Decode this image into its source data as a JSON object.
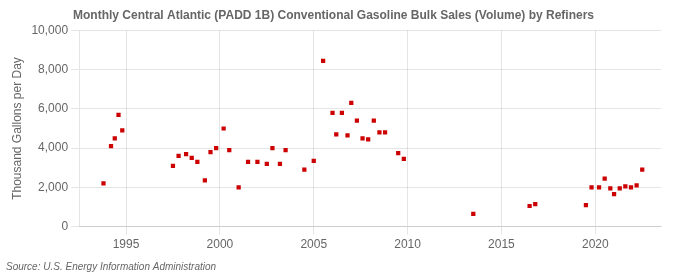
{
  "chart_data": {
    "type": "scatter",
    "title": "Monthly Central Atlantic (PADD 1B) Conventional Gasoline Bulk Sales (Volume) by Refiners",
    "ylabel": "Thousand Gallons per Day",
    "annotation": "Source: U.S. Energy Information Administration",
    "color": "#cc0000",
    "marker": "square",
    "grid": true,
    "xlim": [
      1992.5,
      2023.5
    ],
    "ylim": [
      0,
      10000
    ],
    "xticks": [
      1995,
      2000,
      2005,
      2010,
      2015,
      2020
    ],
    "yticks": [
      0,
      {
        "value": 2000,
        "label": "2,000"
      },
      {
        "value": 4000,
        "label": "4,000"
      },
      {
        "value": 6000,
        "label": "6,000"
      },
      {
        "value": 8000,
        "label": "8,000"
      },
      {
        "value": 10000,
        "label": "10,000"
      }
    ],
    "x": [
      1993.8,
      1994.2,
      1994.4,
      1994.6,
      1994.8,
      1997.5,
      1997.8,
      1998.2,
      1998.5,
      1998.8,
      1999.2,
      1999.5,
      1999.8,
      2000.2,
      2000.5,
      2001.0,
      2001.5,
      2002.0,
      2002.5,
      2002.8,
      2003.2,
      2003.5,
      2004.5,
      2005.0,
      2005.5,
      2006.0,
      2006.2,
      2006.5,
      2006.8,
      2007.0,
      2007.3,
      2007.6,
      2007.9,
      2008.2,
      2008.5,
      2008.8,
      2009.5,
      2009.8,
      2013.5,
      2016.5,
      2016.8,
      2019.5,
      2019.8,
      2020.2,
      2020.5,
      2020.8,
      2021.0,
      2021.3,
      2021.6,
      2021.9,
      2022.2,
      2022.5
    ],
    "values": [
      2200,
      4100,
      4500,
      5700,
      4900,
      3100,
      3600,
      3700,
      3500,
      3300,
      2350,
      3800,
      4000,
      5000,
      3900,
      2000,
      3300,
      3300,
      3200,
      4000,
      3200,
      3900,
      2900,
      3350,
      8450,
      5800,
      4700,
      5800,
      4650,
      6300,
      5400,
      4500,
      4450,
      5400,
      4800,
      4800,
      3750,
      3450,
      650,
      1050,
      1150,
      1100,
      2000,
      2000,
      2450,
      1950,
      1650,
      1950,
      2050,
      2000,
      2100,
      2900
    ]
  }
}
